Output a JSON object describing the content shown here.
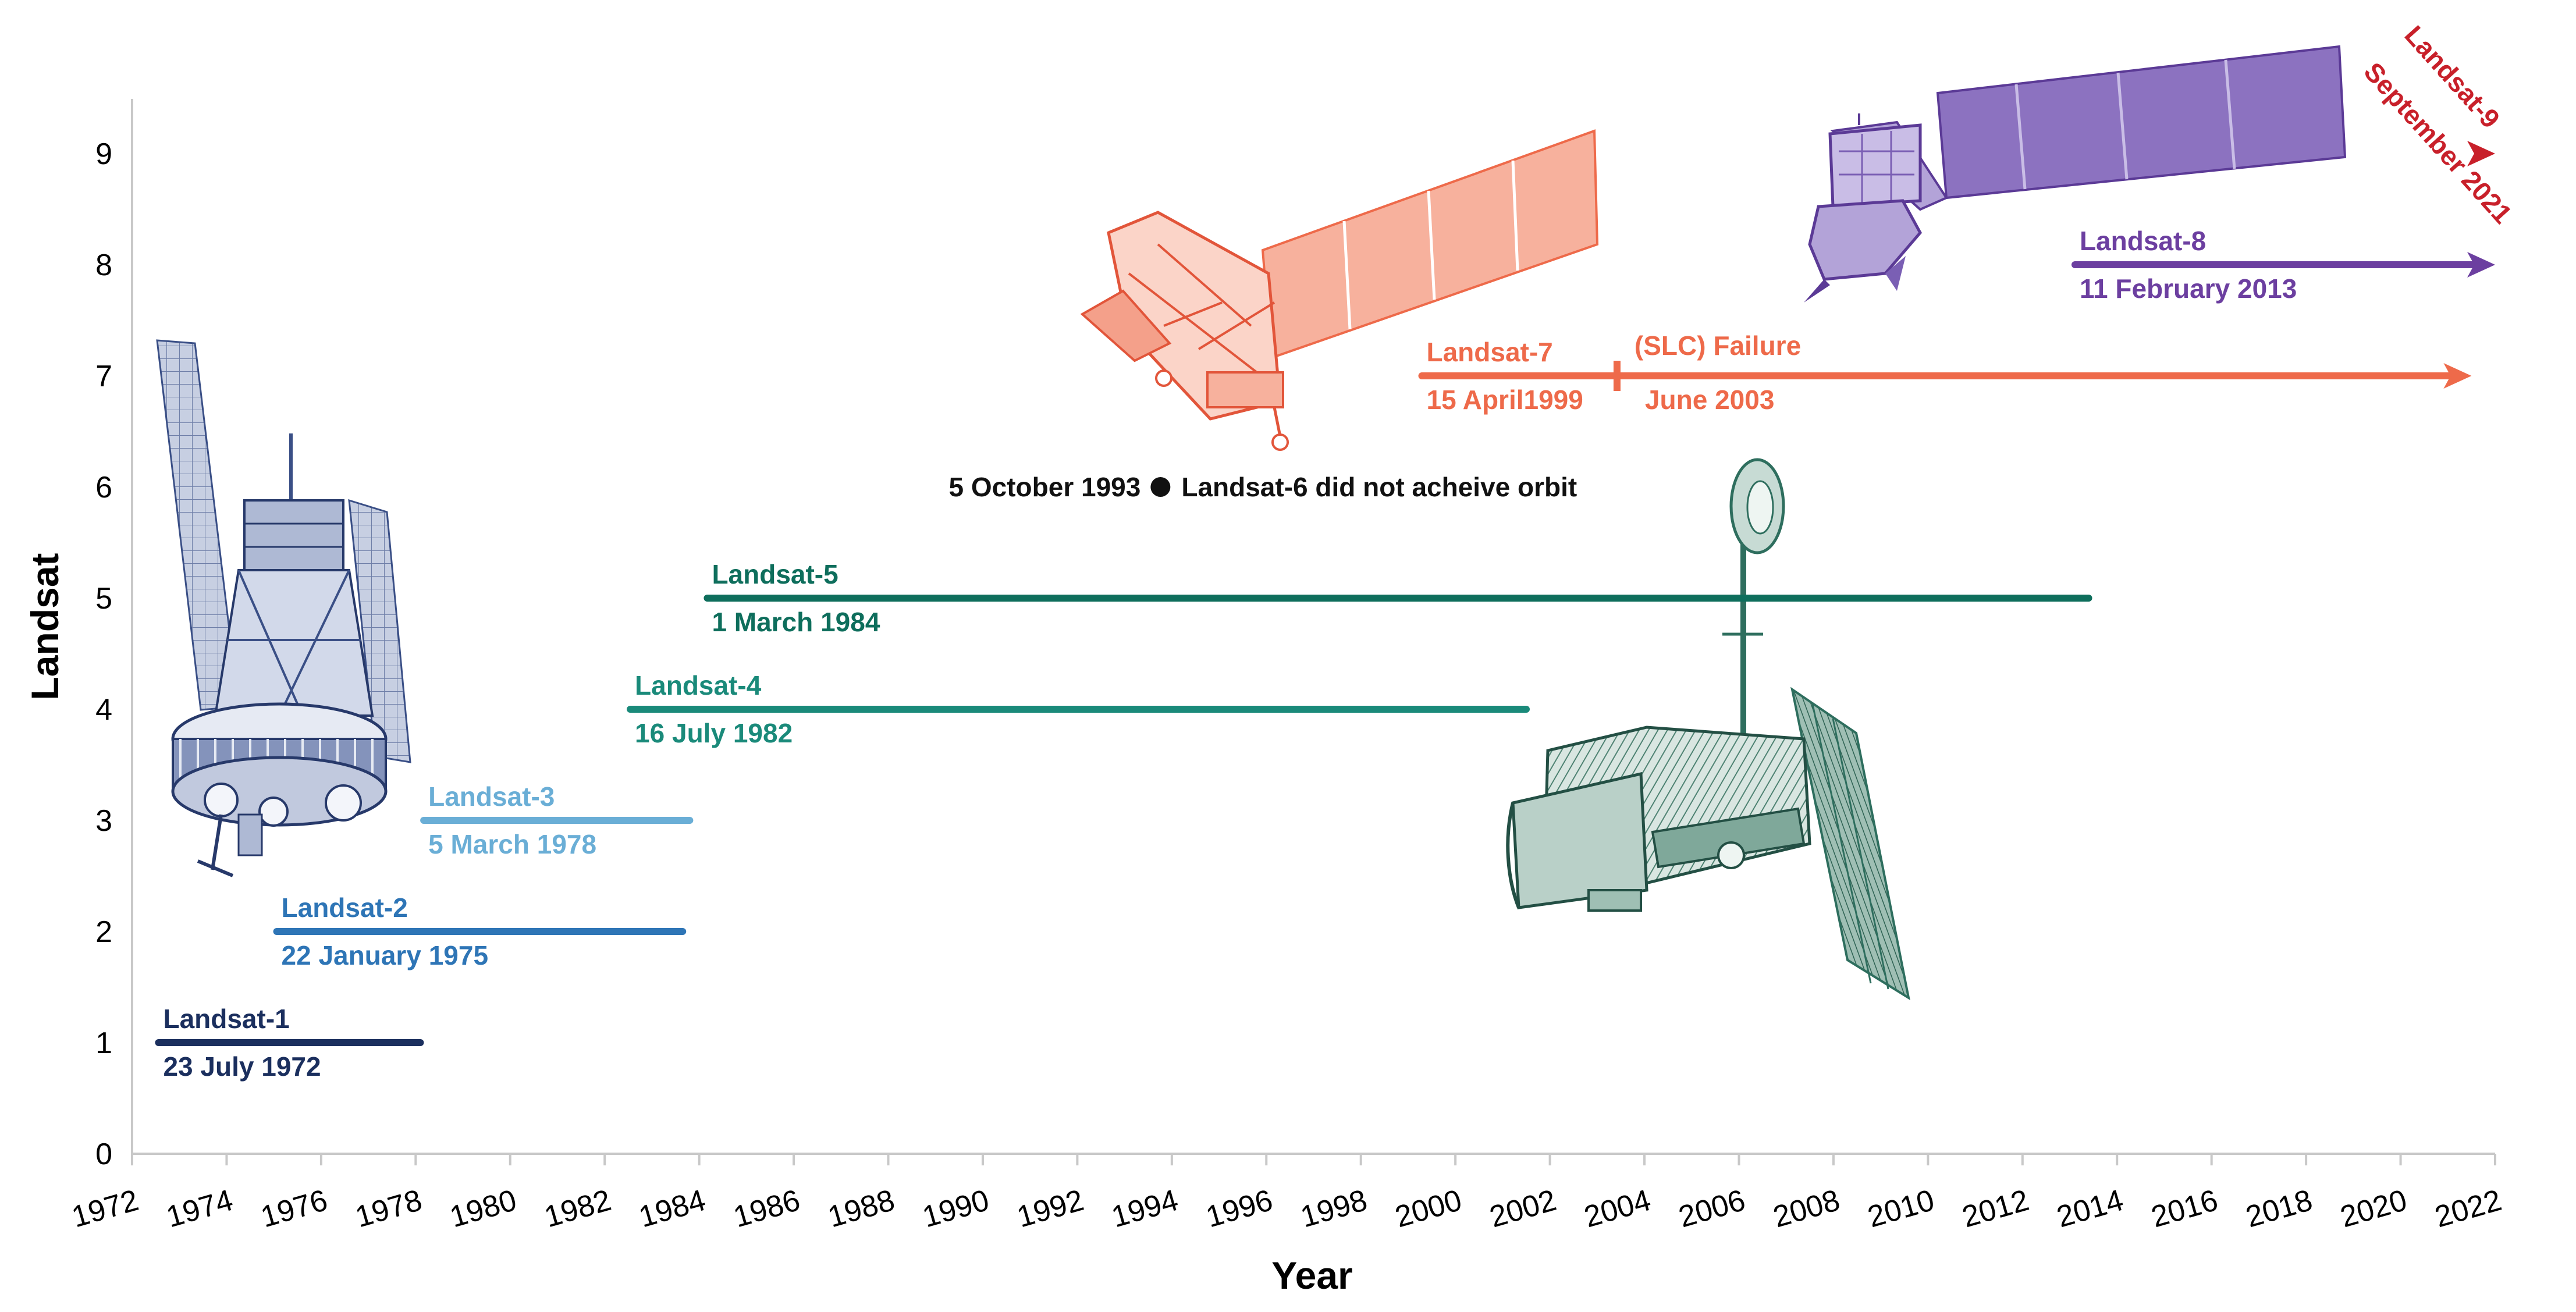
{
  "chart_data": {
    "type": "timeline",
    "xlabel": "Year",
    "ylabel": "Landsat",
    "xlim": [
      1972,
      2022
    ],
    "ylim": [
      0,
      9.3
    ],
    "x_ticks": [
      "1972",
      "1974",
      "1976",
      "1978",
      "1980",
      "1982",
      "1984",
      "1986",
      "1988",
      "1990",
      "1992",
      "1994",
      "1996",
      "1998",
      "2000",
      "2002",
      "2004",
      "2006",
      "2008",
      "2010",
      "2012",
      "2014",
      "2016",
      "2018",
      "2020",
      "2022"
    ],
    "y_ticks": [
      "0",
      "1",
      "2",
      "3",
      "4",
      "5",
      "6",
      "7",
      "8",
      "9"
    ],
    "grid": false,
    "series": [
      {
        "name": "Landsat-1",
        "date": "23 July 1972",
        "start": 1972.56,
        "end": 1978.1,
        "y": 1,
        "color": "#1b2f5e",
        "arrow": false
      },
      {
        "name": "Landsat-2",
        "date": "22 January 1975",
        "start": 1975.06,
        "end": 1983.65,
        "y": 2,
        "color": "#2e75b6",
        "arrow": false
      },
      {
        "name": "Landsat-3",
        "date": "5 March 1978",
        "start": 1978.17,
        "end": 1983.8,
        "y": 3,
        "color": "#6aaed6",
        "arrow": false
      },
      {
        "name": "Landsat-4",
        "date": "16 July 1982",
        "start": 1982.54,
        "end": 2001.5,
        "y": 4,
        "color": "#1a8a7a",
        "arrow": false
      },
      {
        "name": "Landsat-5",
        "date": "1 March 1984",
        "start": 1984.17,
        "end": 2013.4,
        "y": 5,
        "color": "#0e6e5c",
        "arrow": false
      },
      {
        "name": "Landsat-7",
        "date": "15 April1999",
        "start": 1999.29,
        "end": 2021.5,
        "y": 7,
        "color": "#ee6a4a",
        "arrow": true
      },
      {
        "name": "Landsat-8",
        "date": "11 February 2013",
        "start": 2013.11,
        "end": 2022,
        "y": 8,
        "color": "#6c3fa0",
        "arrow": true
      },
      {
        "name": "Landsat-9",
        "date": "September 2021",
        "start": 2021.7,
        "end": 2022,
        "y": 9,
        "color": "#c8202a",
        "arrow": true
      }
    ],
    "annotations": [
      {
        "id": "landsat-6",
        "date_text": "5 October 1993",
        "text": "Landsat-6 did not acheive orbit",
        "x": 1993.76,
        "y": 6
      },
      {
        "id": "slc-failure",
        "title": "(SLC) Failure",
        "date_text": "June 2003",
        "x": 2003.42,
        "y": 7
      }
    ]
  },
  "colors": {
    "axis": "#c8c8c8",
    "landsat_7_art": "#f4a08a",
    "landsat_8_art": "#8c72c0",
    "landsat_1_art": "#3a4f86",
    "landsat_4_art": "#2e6e5e"
  },
  "illustrations": [
    "landsat-1-satellite-icon",
    "landsat-4-satellite-icon",
    "landsat-7-satellite-icon",
    "landsat-8-satellite-icon"
  ]
}
